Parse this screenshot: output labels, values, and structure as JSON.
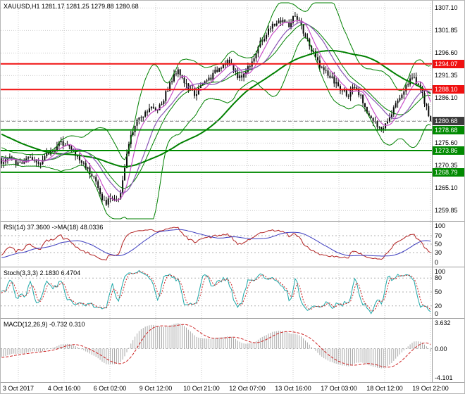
{
  "chart_data": {
    "type": "candlestick",
    "symbol": "XAUUSD",
    "timeframe": "H1",
    "title": "XAUUSD,H1 1281.17 1281.25 1279.88 1280.68",
    "current_ohlc": {
      "open": 1281.17,
      "high": 1281.25,
      "low": 1279.88,
      "close": 1280.68
    },
    "y_axis_labels": [
      "1307.10",
      "1301.85",
      "1296.60",
      "1291.35",
      "1286.10",
      "1280.85",
      "1275.60",
      "1270.35",
      "1265.10",
      "1259.85"
    ],
    "x_axis_labels": [
      "3 Oct 2017",
      "4 Oct 16:00",
      "6 Oct 02:00",
      "9 Oct 12:00",
      "10 Oct 21:00",
      "12 Oct 07:00",
      "13 Oct 16:00",
      "17 Oct 03:00",
      "18 Oct 12:00",
      "19 Oct 22:00"
    ],
    "horizontal_levels": [
      {
        "price": 1294.07,
        "label": "1294.07",
        "role": "resistance"
      },
      {
        "price": 1288.1,
        "label": "1288.10",
        "role": "resistance"
      },
      {
        "price": 1280.68,
        "label": "1280.68",
        "role": "current-price"
      },
      {
        "price": 1278.68,
        "label": "1278.68",
        "role": "support"
      },
      {
        "price": 1273.86,
        "label": "1273.86",
        "role": "support"
      },
      {
        "price": 1268.79,
        "label": "1268.79",
        "role": "support"
      }
    ],
    "close_path_anchors": [
      [
        -70,
        1288.5
      ],
      [
        -55,
        1285.0
      ],
      [
        -40,
        1280.5
      ],
      [
        -25,
        1276.0
      ],
      [
        -12,
        1273.0
      ],
      [
        -1,
        1271.5
      ],
      [
        0,
        1271.2
      ],
      [
        4,
        1272.3
      ],
      [
        8,
        1270.6
      ],
      [
        13,
        1271.8
      ],
      [
        18,
        1271.0
      ],
      [
        23,
        1273.2
      ],
      [
        28,
        1275.3
      ],
      [
        31,
        1275.8
      ],
      [
        34,
        1274.0
      ],
      [
        38,
        1271.6
      ],
      [
        41,
        1270.2
      ],
      [
        45,
        1267.8
      ],
      [
        48,
        1263.6
      ],
      [
        51,
        1261.3
      ],
      [
        53,
        1263.2
      ],
      [
        56,
        1261.8
      ],
      [
        58,
        1264.5
      ],
      [
        60,
        1269.5
      ],
      [
        62,
        1275.5
      ],
      [
        65,
        1279.8
      ],
      [
        69,
        1282.4
      ],
      [
        72,
        1284.0
      ],
      [
        75,
        1283.3
      ],
      [
        78,
        1285.0
      ],
      [
        81,
        1288.4
      ],
      [
        84,
        1291.3
      ],
      [
        86,
        1293.2
      ],
      [
        88,
        1290.6
      ],
      [
        91,
        1288.2
      ],
      [
        94,
        1287.0
      ],
      [
        97,
        1288.6
      ],
      [
        99,
        1289.8
      ],
      [
        103,
        1291.4
      ],
      [
        106,
        1293.4
      ],
      [
        110,
        1294.8
      ],
      [
        113,
        1292.8
      ],
      [
        116,
        1290.8
      ],
      [
        119,
        1292.4
      ],
      [
        123,
        1295.8
      ],
      [
        126,
        1298.8
      ],
      [
        130,
        1301.8
      ],
      [
        133,
        1303.4
      ],
      [
        137,
        1304.3
      ],
      [
        140,
        1302.8
      ],
      [
        142,
        1304.8
      ],
      [
        145,
        1303.8
      ],
      [
        148,
        1300.4
      ],
      [
        151,
        1297.2
      ],
      [
        154,
        1294.6
      ],
      [
        157,
        1292.4
      ],
      [
        160,
        1291.0
      ],
      [
        163,
        1289.4
      ],
      [
        165,
        1288.0
      ],
      [
        169,
        1287.0
      ],
      [
        172,
        1288.4
      ],
      [
        176,
        1285.4
      ],
      [
        179,
        1282.0
      ],
      [
        182,
        1280.0
      ],
      [
        185,
        1278.4
      ],
      [
        187,
        1280.4
      ],
      [
        190,
        1283.0
      ],
      [
        193,
        1285.6
      ],
      [
        196,
        1288.0
      ],
      [
        198,
        1289.8
      ],
      [
        201,
        1291.0
      ],
      [
        204,
        1288.4
      ],
      [
        206,
        1285.0
      ],
      [
        208,
        1282.0
      ],
      [
        209,
        1280.7
      ]
    ],
    "indicators": {
      "rsi": {
        "label": "RSI(14) 37.3600 ->MA(18) 48.0336",
        "period": 14,
        "ma_period": 18,
        "value": 37.36,
        "ma_value": 48.0336,
        "axis_labels": [
          100,
          70,
          50,
          30,
          0
        ]
      },
      "stochastic": {
        "label": "Stoch(3,3,3) 2.1830 6.4704",
        "periods": [
          3,
          3,
          3
        ],
        "k_value": 2.183,
        "d_value": 6.4704,
        "axis_labels": [
          100,
          80,
          50,
          20,
          0
        ]
      },
      "macd": {
        "label": "MACD(12,26,9) -0.732 0.310",
        "periods": [
          12,
          26,
          9
        ],
        "macd_value": -0.732,
        "signal_value": 0.31,
        "axis_labels": [
          {
            "text": "3.632",
            "value": 3.632
          },
          {
            "text": "0.00",
            "value": 0
          },
          {
            "text": "-4.101",
            "value": -4.101
          }
        ]
      }
    }
  },
  "colors": {
    "background": "#ffffff",
    "candle": "#0a0a0a",
    "bollinger_band": "#008000",
    "trend_ma_green": "#008000",
    "ma_magenta": "#c94fc9",
    "ma_violet": "#8a55b5",
    "resistance": "#f01010",
    "support": "#008a00",
    "current_price": "#3c3c3c",
    "rsi": "#b22222",
    "rsi_ma": "#3d3dbf",
    "stoch_main": "#1ea8a8",
    "stoch_signal": "#cc2222",
    "macd_histogram": "#a8a8a8",
    "macd_signal": "#cc2222",
    "grid": "#cccccc",
    "axis_text": "#000000",
    "panel_divider": "#9a9a9a"
  }
}
